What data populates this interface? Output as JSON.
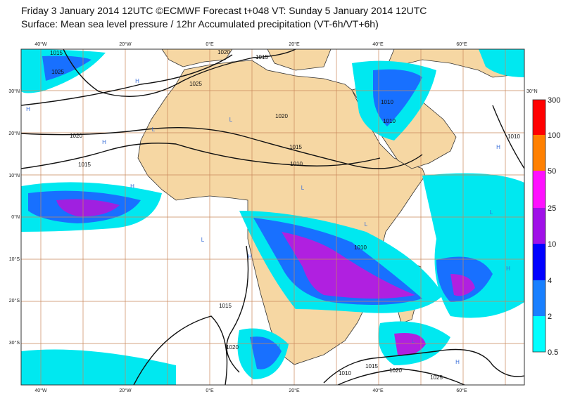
{
  "header": {
    "title": "Friday 3 January 2014 12UTC ©ECMWF Forecast t+048 VT: Sunday 5 January 2014 12UTC",
    "subtitle": "Surface: Mean sea level pressure / 12hr Accumulated precipitation (VT-6h/VT+6h)"
  },
  "map": {
    "lon_labels": [
      "40°W",
      "20°W",
      "0°E",
      "20°E",
      "40°E",
      "60°E"
    ],
    "lat_labels": [
      "30°N",
      "20°N",
      "10°N",
      "0°N",
      "10°S",
      "20°S",
      "30°S"
    ],
    "isobar_labels": [
      "1020",
      "1015",
      "1025",
      "1025",
      "1015",
      "1020",
      "1015",
      "1010",
      "1020",
      "1015",
      "1010",
      "1010",
      "1010",
      "1015",
      "1020",
      "1010",
      "1015",
      "1020",
      "1025",
      "1010"
    ],
    "pressure_centres": [
      "H",
      "H",
      "L",
      "L",
      "H",
      "L",
      "H",
      "L",
      "H",
      "L",
      "H",
      "L",
      "H",
      "H",
      "L",
      "H"
    ]
  },
  "colorbar": {
    "labels": [
      "300",
      "100",
      "50",
      "25",
      "10",
      "4",
      "2",
      "0.5"
    ]
  }
}
